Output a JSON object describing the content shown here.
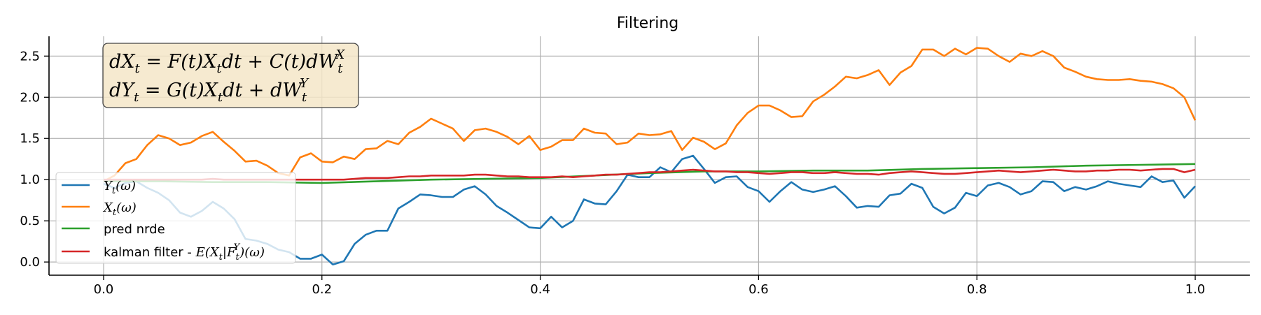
{
  "chart_data": {
    "type": "line",
    "title": "Filtering",
    "xlabel": "",
    "ylabel": "",
    "xlim": [
      -0.05,
      1.05
    ],
    "ylim": [
      -0.16,
      2.74
    ],
    "xticks": [
      0.0,
      0.2,
      0.4,
      0.6,
      0.8,
      1.0
    ],
    "xtick_labels": [
      "0.0",
      "0.2",
      "0.4",
      "0.6",
      "0.8",
      "1.0"
    ],
    "yticks": [
      0.0,
      0.5,
      1.0,
      1.5,
      2.0,
      2.5
    ],
    "ytick_labels": [
      "0.0",
      "0.5",
      "1.0",
      "1.5",
      "2.0",
      "2.5"
    ],
    "grid": true,
    "legend_position": "lower-left",
    "equation_box": {
      "position": "top-left",
      "line1": [
        "dX",
        "t",
        " = F(t)X",
        "t",
        "dt + C(t)dW",
        "t",
        "X"
      ],
      "line2": [
        "dY",
        "t",
        " = G(t)X",
        "t",
        "dt + dW",
        "t",
        "Y"
      ]
    },
    "series": [
      {
        "name": "Y_t(ω)",
        "legend_main": "Y",
        "legend_sub": "t",
        "legend_rest": "(ω)",
        "color": "#1f77b4",
        "x": [
          0.0,
          0.01,
          0.02,
          0.03,
          0.04,
          0.05,
          0.06,
          0.07,
          0.08,
          0.09,
          0.1,
          0.11,
          0.12,
          0.13,
          0.14,
          0.15,
          0.16,
          0.17,
          0.18,
          0.19,
          0.2,
          0.21,
          0.22,
          0.23,
          0.24,
          0.25,
          0.26,
          0.27,
          0.28,
          0.29,
          0.3,
          0.31,
          0.32,
          0.33,
          0.34,
          0.35,
          0.36,
          0.37,
          0.38,
          0.39,
          0.4,
          0.41,
          0.42,
          0.43,
          0.44,
          0.45,
          0.46,
          0.47,
          0.48,
          0.49,
          0.5,
          0.51,
          0.52,
          0.53,
          0.54,
          0.55,
          0.56,
          0.57,
          0.58,
          0.59,
          0.6,
          0.61,
          0.62,
          0.63,
          0.64,
          0.65,
          0.66,
          0.67,
          0.68,
          0.69,
          0.7,
          0.71,
          0.72,
          0.73,
          0.74,
          0.75,
          0.76,
          0.77,
          0.78,
          0.79,
          0.8,
          0.81,
          0.82,
          0.83,
          0.84,
          0.85,
          0.86,
          0.87,
          0.88,
          0.89,
          0.9,
          0.91,
          0.92,
          0.93,
          0.94,
          0.95,
          0.96,
          0.97,
          0.98,
          0.99,
          1.0
        ],
        "values": [
          0.95,
          0.9,
          0.96,
          0.98,
          0.9,
          0.84,
          0.75,
          0.6,
          0.55,
          0.62,
          0.73,
          0.65,
          0.52,
          0.28,
          0.26,
          0.22,
          0.15,
          0.12,
          0.04,
          0.04,
          0.09,
          -0.03,
          0.01,
          0.22,
          0.33,
          0.38,
          0.38,
          0.65,
          0.73,
          0.82,
          0.81,
          0.79,
          0.79,
          0.88,
          0.92,
          0.82,
          0.68,
          0.6,
          0.51,
          0.42,
          0.41,
          0.55,
          0.42,
          0.5,
          0.76,
          0.71,
          0.7,
          0.86,
          1.06,
          1.03,
          1.03,
          1.15,
          1.09,
          1.25,
          1.29,
          1.13,
          0.96,
          1.03,
          1.04,
          0.91,
          0.86,
          0.73,
          0.86,
          0.97,
          0.88,
          0.85,
          0.88,
          0.92,
          0.8,
          0.66,
          0.68,
          0.67,
          0.81,
          0.83,
          0.95,
          0.9,
          0.67,
          0.59,
          0.66,
          0.84,
          0.8,
          0.93,
          0.96,
          0.91,
          0.82,
          0.86,
          0.98,
          0.97,
          0.86,
          0.91,
          0.88,
          0.92,
          0.98,
          0.95,
          0.93,
          0.91,
          1.04,
          0.97,
          0.99,
          0.78,
          0.92
        ]
      },
      {
        "name": "X_t(ω)",
        "legend_main": "X",
        "legend_sub": "t",
        "legend_rest": "(ω)",
        "color": "#ff7f0e",
        "x": [
          0.0,
          0.01,
          0.02,
          0.03,
          0.04,
          0.05,
          0.06,
          0.07,
          0.08,
          0.09,
          0.1,
          0.11,
          0.12,
          0.13,
          0.14,
          0.15,
          0.16,
          0.17,
          0.18,
          0.19,
          0.2,
          0.21,
          0.22,
          0.23,
          0.24,
          0.25,
          0.26,
          0.27,
          0.28,
          0.29,
          0.3,
          0.31,
          0.32,
          0.33,
          0.34,
          0.35,
          0.36,
          0.37,
          0.38,
          0.39,
          0.4,
          0.41,
          0.42,
          0.43,
          0.44,
          0.45,
          0.46,
          0.47,
          0.48,
          0.49,
          0.5,
          0.51,
          0.52,
          0.53,
          0.54,
          0.55,
          0.56,
          0.57,
          0.58,
          0.59,
          0.6,
          0.61,
          0.62,
          0.63,
          0.64,
          0.65,
          0.66,
          0.67,
          0.68,
          0.69,
          0.7,
          0.71,
          0.72,
          0.73,
          0.74,
          0.75,
          0.76,
          0.77,
          0.78,
          0.79,
          0.8,
          0.81,
          0.82,
          0.83,
          0.84,
          0.85,
          0.86,
          0.87,
          0.88,
          0.89,
          0.9,
          0.91,
          0.92,
          0.93,
          0.94,
          0.95,
          0.96,
          0.97,
          0.98,
          0.99,
          1.0
        ],
        "values": [
          0.98,
          1.05,
          1.2,
          1.25,
          1.42,
          1.54,
          1.5,
          1.42,
          1.45,
          1.53,
          1.58,
          1.46,
          1.35,
          1.22,
          1.23,
          1.17,
          1.08,
          1.05,
          1.27,
          1.32,
          1.22,
          1.21,
          1.28,
          1.25,
          1.37,
          1.38,
          1.47,
          1.43,
          1.57,
          1.64,
          1.74,
          1.68,
          1.62,
          1.47,
          1.6,
          1.62,
          1.58,
          1.52,
          1.43,
          1.53,
          1.36,
          1.4,
          1.48,
          1.48,
          1.62,
          1.57,
          1.56,
          1.43,
          1.45,
          1.56,
          1.54,
          1.55,
          1.59,
          1.36,
          1.51,
          1.46,
          1.37,
          1.44,
          1.66,
          1.81,
          1.9,
          1.9,
          1.84,
          1.76,
          1.77,
          1.95,
          2.03,
          2.13,
          2.25,
          2.23,
          2.27,
          2.33,
          2.15,
          2.3,
          2.38,
          2.58,
          2.58,
          2.5,
          2.59,
          2.52,
          2.6,
          2.59,
          2.5,
          2.43,
          2.53,
          2.5,
          2.56,
          2.5,
          2.36,
          2.31,
          2.25,
          2.22,
          2.21,
          2.21,
          2.22,
          2.2,
          2.19,
          2.16,
          2.11,
          2.0,
          1.72
        ]
      },
      {
        "name": "pred nrde",
        "legend_text": "pred nrde",
        "color": "#2ca02c",
        "x": [
          0.0,
          0.05,
          0.1,
          0.15,
          0.2,
          0.25,
          0.3,
          0.35,
          0.4,
          0.45,
          0.5,
          0.55,
          0.6,
          0.65,
          0.7,
          0.75,
          0.8,
          0.85,
          0.9,
          0.95,
          1.0
        ],
        "values": [
          0.98,
          0.98,
          0.97,
          0.97,
          0.96,
          0.98,
          1.0,
          1.01,
          1.02,
          1.05,
          1.08,
          1.1,
          1.1,
          1.11,
          1.11,
          1.13,
          1.14,
          1.15,
          1.17,
          1.18,
          1.19
        ]
      },
      {
        "name": "kalman filter - E(X_t|F_t^Y)(ω)",
        "legend_text": "kalman filter - ",
        "legend_math": [
          "E(X",
          "t",
          "|F",
          "t",
          "Y",
          ")(ω)"
        ],
        "color": "#d62728",
        "x": [
          0.0,
          0.01,
          0.02,
          0.03,
          0.04,
          0.05,
          0.06,
          0.07,
          0.08,
          0.09,
          0.1,
          0.11,
          0.12,
          0.13,
          0.14,
          0.15,
          0.16,
          0.17,
          0.18,
          0.19,
          0.2,
          0.21,
          0.22,
          0.23,
          0.24,
          0.25,
          0.26,
          0.27,
          0.28,
          0.29,
          0.3,
          0.31,
          0.32,
          0.33,
          0.34,
          0.35,
          0.36,
          0.37,
          0.38,
          0.39,
          0.4,
          0.41,
          0.42,
          0.43,
          0.44,
          0.45,
          0.46,
          0.47,
          0.48,
          0.49,
          0.5,
          0.51,
          0.52,
          0.53,
          0.54,
          0.55,
          0.56,
          0.57,
          0.58,
          0.59,
          0.6,
          0.61,
          0.62,
          0.63,
          0.64,
          0.65,
          0.66,
          0.67,
          0.68,
          0.69,
          0.7,
          0.71,
          0.72,
          0.73,
          0.74,
          0.75,
          0.76,
          0.77,
          0.78,
          0.79,
          0.8,
          0.81,
          0.82,
          0.83,
          0.84,
          0.85,
          0.86,
          0.87,
          0.88,
          0.89,
          0.9,
          0.91,
          0.92,
          0.93,
          0.94,
          0.95,
          0.96,
          0.97,
          0.98,
          0.99,
          1.0
        ],
        "values": [
          1.0,
          1.0,
          1.0,
          1.0,
          1.0,
          1.0,
          1.0,
          1.0,
          1.0,
          1.0,
          1.01,
          1.0,
          1.0,
          1.0,
          1.0,
          1.0,
          1.0,
          1.0,
          1.0,
          1.0,
          1.0,
          1.0,
          1.0,
          1.01,
          1.02,
          1.02,
          1.02,
          1.03,
          1.04,
          1.04,
          1.05,
          1.05,
          1.05,
          1.05,
          1.06,
          1.06,
          1.05,
          1.04,
          1.04,
          1.03,
          1.03,
          1.03,
          1.04,
          1.03,
          1.04,
          1.05,
          1.06,
          1.06,
          1.07,
          1.08,
          1.09,
          1.09,
          1.1,
          1.11,
          1.12,
          1.11,
          1.1,
          1.1,
          1.09,
          1.09,
          1.08,
          1.07,
          1.08,
          1.09,
          1.09,
          1.08,
          1.08,
          1.09,
          1.08,
          1.07,
          1.07,
          1.06,
          1.08,
          1.09,
          1.1,
          1.09,
          1.08,
          1.07,
          1.07,
          1.08,
          1.09,
          1.1,
          1.11,
          1.1,
          1.09,
          1.1,
          1.11,
          1.12,
          1.11,
          1.1,
          1.1,
          1.11,
          1.11,
          1.12,
          1.12,
          1.11,
          1.12,
          1.13,
          1.13,
          1.09,
          1.12
        ]
      }
    ]
  }
}
